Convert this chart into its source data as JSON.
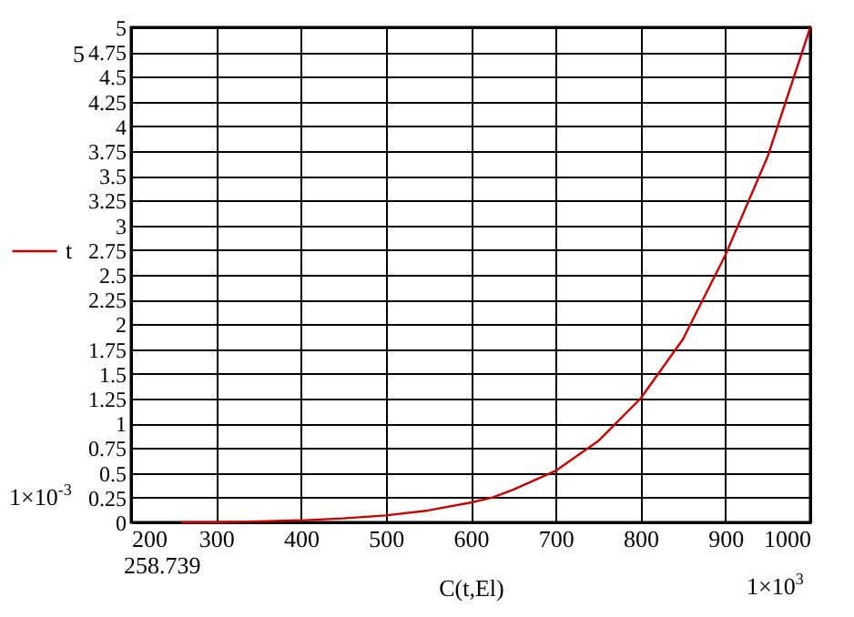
{
  "chart_data": {
    "type": "line",
    "xlabel": "C(t,El)",
    "x": [
      258.739,
      300,
      350,
      400,
      450,
      500,
      550,
      600,
      625,
      650,
      700,
      750,
      800,
      850,
      900,
      950,
      1000
    ],
    "series": [
      {
        "name": "t",
        "color": "#cc0000",
        "values": [
          0,
          0,
          0.01,
          0.02,
          0.04,
          0.07,
          0.12,
          0.2,
          0.25,
          0.33,
          0.52,
          0.82,
          1.25,
          1.85,
          2.7,
          3.7,
          5
        ]
      }
    ],
    "xlim": [
      200,
      1000
    ],
    "xticks": [
      200,
      300,
      400,
      500,
      600,
      700,
      800,
      900,
      1000
    ],
    "ylim": [
      0,
      5
    ],
    "yticks": [
      0,
      0.25,
      0.5,
      0.75,
      1,
      1.25,
      1.5,
      1.75,
      2,
      2.25,
      2.5,
      2.75,
      3,
      3.25,
      3.5,
      3.75,
      4,
      4.25,
      4.5,
      4.75,
      5
    ],
    "grid": true,
    "legend": "left",
    "annotations": [
      "5",
      "1×10$^{-3}$",
      "258.739",
      "1×10$^{3}$"
    ]
  }
}
